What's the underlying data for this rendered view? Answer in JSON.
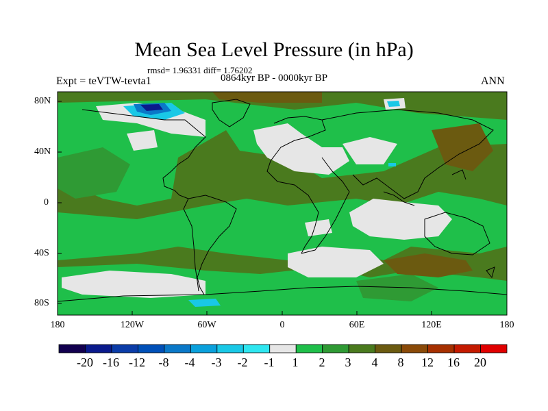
{
  "figure": {
    "title": "Mean Sea Level Pressure (in hPa)",
    "stats": "rmsd= 1.96331 diff= 1.76202",
    "period": "0864kyr BP - 0000kyr BP",
    "experiment": "Expt = teVTW-tevta1",
    "season": "ANN"
  },
  "map": {
    "lat_labels": [
      "80N",
      "40N",
      "0",
      "40S",
      "80S"
    ],
    "lon_labels": [
      "180",
      "120W",
      "60W",
      "0",
      "60E",
      "120E",
      "180"
    ]
  },
  "colorbar": {
    "labels": [
      "-20",
      "-16",
      "-12",
      "-8",
      "-4",
      "-3",
      "-2",
      "-1",
      "1",
      "2",
      "3",
      "4",
      "8",
      "12",
      "16",
      "20"
    ],
    "colors": [
      "#12004f",
      "#0a1a8c",
      "#0b3ca8",
      "#0050b8",
      "#0a78c8",
      "#0aa0dc",
      "#19c8e6",
      "#2ee6f0",
      "#e6e6e6",
      "#1fbf4a",
      "#2f9a34",
      "#4a7a1e",
      "#6b5a10",
      "#8a4a08",
      "#a63000",
      "#c41a00",
      "#e00000"
    ]
  },
  "palette": {
    "ocean_base": "#4a7a1e",
    "green": "#1fbf4a",
    "dark_green": "#2f9a34",
    "white": "#e6e6e6",
    "brown": "#6b5a10",
    "light_blue": "#19c8e6",
    "blue": "#0a78c8",
    "navy": "#0a1a8c"
  }
}
